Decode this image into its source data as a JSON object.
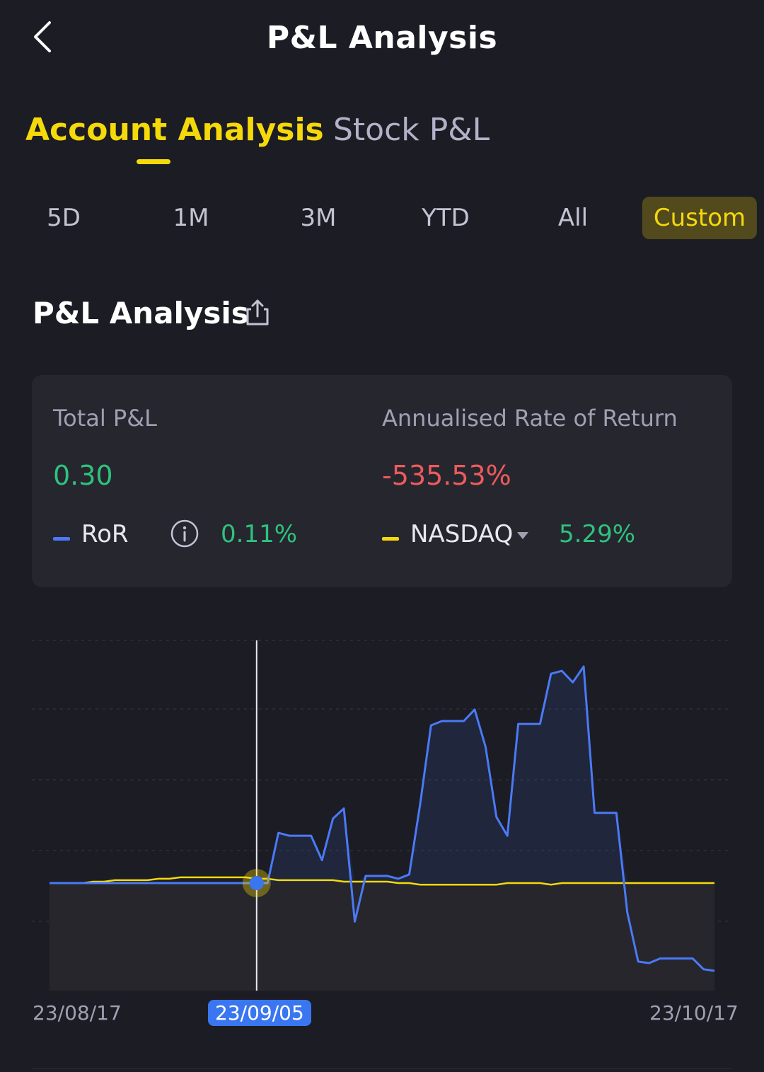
{
  "header": {
    "title": "P&L Analysis",
    "back_icon": "chevron-left-icon"
  },
  "tabs": [
    {
      "label": "Account Analysis",
      "active": true
    },
    {
      "label": "Stock P&L",
      "active": false
    }
  ],
  "periods": [
    {
      "label": "5D",
      "active": false
    },
    {
      "label": "1M",
      "active": false
    },
    {
      "label": "3M",
      "active": false
    },
    {
      "label": "YTD",
      "active": false
    },
    {
      "label": "All",
      "active": false
    },
    {
      "label": "Custom",
      "active": true
    }
  ],
  "section": {
    "title": "P&L Analysis",
    "share_icon": "share-icon"
  },
  "summary": {
    "total_pl_label": "Total P&L",
    "total_pl_value": "0.30",
    "annualised_label": "Annualised Rate of Return",
    "annualised_value": "-535.53%",
    "ror_name": "RoR",
    "ror_value": "0.11%",
    "benchmark_name": "NASDAQ",
    "benchmark_value": "5.29%"
  },
  "colors": {
    "accent": "#f5d90a",
    "positive": "#2fc27d",
    "negative": "#ec5b5b",
    "ror_line": "#4a7af5",
    "benchmark_line": "#f5d90a",
    "selected_date_bg": "#3a76f0"
  },
  "chart_data": {
    "type": "line",
    "x_start_label": "23/08/17",
    "x_selected_label": "23/09/05",
    "x_end_label": "23/10/17",
    "series": [
      {
        "name": "RoR",
        "values": [
          0.0,
          0.0,
          0.0,
          0.0,
          0.0,
          0.0,
          0.0,
          0.0,
          0.0,
          0.0,
          0.0,
          0.0,
          0.0,
          0.0,
          0.0,
          0.0,
          0.0,
          0.0,
          0.0,
          0.0,
          0.0,
          0.35,
          0.33,
          0.33,
          0.33,
          0.16,
          0.45,
          0.52,
          -0.25,
          0.05,
          0.05,
          0.05,
          0.03,
          0.06,
          0.55,
          1.1,
          1.13,
          1.13,
          1.13,
          1.21,
          0.95,
          0.46,
          0.33,
          1.11,
          1.11,
          1.11,
          1.46,
          1.48,
          1.4,
          1.51,
          0.49,
          0.49,
          0.49,
          -0.19,
          -0.51,
          -0.52,
          -0.49,
          -0.49,
          -0.49,
          -0.49,
          -0.56,
          -0.57
        ]
      },
      {
        "name": "NASDAQ",
        "values": [
          0.0,
          0.0,
          0.0,
          0.0,
          0.01,
          0.01,
          0.02,
          0.02,
          0.02,
          0.02,
          0.03,
          0.03,
          0.04,
          0.04,
          0.04,
          0.04,
          0.04,
          0.04,
          0.04,
          0.03,
          0.03,
          0.02,
          0.02,
          0.02,
          0.02,
          0.02,
          0.02,
          0.01,
          0.01,
          0.01,
          0.01,
          0.01,
          0.0,
          0.0,
          -0.01,
          -0.01,
          -0.01,
          -0.01,
          -0.01,
          -0.01,
          -0.01,
          -0.01,
          0.0,
          0.0,
          0.0,
          0.0,
          -0.01,
          0.0,
          0.0,
          0.0,
          0.0,
          0.0,
          0.0,
          0.0,
          0.0,
          0.0,
          0.0,
          0.0,
          0.0,
          0.0,
          0.0,
          0.0
        ]
      }
    ],
    "selected_index": 19,
    "grid": true
  }
}
